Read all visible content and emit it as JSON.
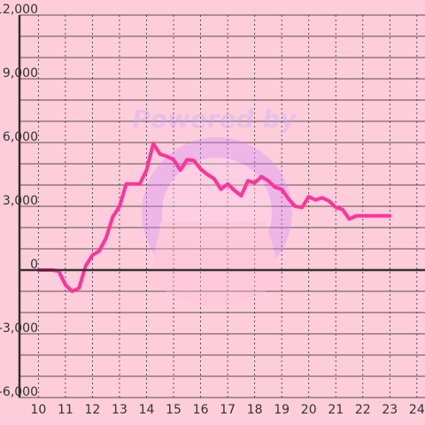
{
  "chart_data": {
    "type": "line",
    "x": [
      10,
      10.25,
      10.5,
      10.75,
      11,
      11.25,
      11.5,
      11.75,
      12,
      12.25,
      12.5,
      12.75,
      13,
      13.25,
      13.5,
      13.75,
      14,
      14.25,
      14.5,
      14.75,
      15,
      15.25,
      15.5,
      15.75,
      16,
      16.25,
      16.5,
      16.75,
      17,
      17.25,
      17.5,
      17.75,
      18,
      18.25,
      18.5,
      18.75,
      19,
      19.25,
      19.5,
      19.75,
      20,
      20.25,
      20.5,
      20.75,
      21,
      21.25,
      21.5,
      21.75,
      22,
      22.25,
      22.5,
      22.75,
      23
    ],
    "series": [
      {
        "values": [
          0,
          0,
          0,
          -50,
          -700,
          -1000,
          -850,
          200,
          700,
          900,
          1500,
          2500,
          3000,
          4050,
          4050,
          4050,
          4700,
          5950,
          5450,
          5350,
          5200,
          4700,
          5200,
          5150,
          4750,
          4500,
          4300,
          3800,
          4050,
          3750,
          3500,
          4200,
          4100,
          4400,
          4200,
          3900,
          3800,
          3350,
          3000,
          2950,
          3450,
          3300,
          3400,
          3250,
          2950,
          2850,
          2400,
          2550,
          2550,
          2550,
          2550,
          2550,
          2550
        ]
      }
    ],
    "xticks": [
      "10",
      "11",
      "12",
      "13",
      "14",
      "15",
      "16",
      "17",
      "18",
      "19",
      "20",
      "21",
      "22",
      "23",
      "24"
    ],
    "yticks": [
      "12,000",
      "9,000",
      "6,000",
      "3,000",
      "0",
      "-3,000",
      "-6,000"
    ],
    "xlim": [
      9.3,
      24.3
    ],
    "ylim": [
      -6000,
      12000
    ],
    "grid": true,
    "line_color": "#ff3399",
    "background_color": "#fecddb",
    "watermark_text": "Powered by"
  }
}
